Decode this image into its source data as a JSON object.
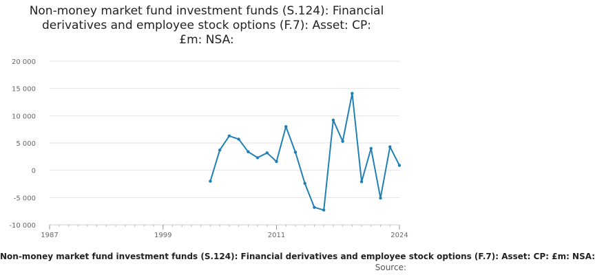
{
  "chart_data": {
    "type": "line",
    "title_lines": [
      "Non-money market fund investment funds (S.124): Financial",
      "derivatives and employee stock options (F.7): Asset: CP:",
      "£m: NSA:"
    ],
    "caption": "Non-money market fund investment funds (S.124): Financial derivatives and employee stock options (F.7): Asset: CP: £m: NSA:",
    "source_label": "Source:",
    "xlabel": "",
    "ylabel": "",
    "xlim": [
      1987,
      2024
    ],
    "ylim": [
      -10000,
      20000
    ],
    "x_ticks": [
      1987,
      1999,
      2011,
      2024
    ],
    "y_ticks": [
      {
        "value": 20000,
        "label": "20 000"
      },
      {
        "value": 15000,
        "label": "15 000"
      },
      {
        "value": 10000,
        "label": "10 000"
      },
      {
        "value": 5000,
        "label": "5 000"
      },
      {
        "value": 0,
        "label": "0"
      },
      {
        "value": -5000,
        "label": "-5 000"
      },
      {
        "value": -10000,
        "label": "-10 000"
      }
    ],
    "grid": true,
    "legend": "none",
    "color": "#1f7fb5",
    "x": [
      2004,
      2005,
      2006,
      2007,
      2008,
      2009,
      2010,
      2011,
      2012,
      2013,
      2014,
      2015,
      2016,
      2017,
      2018,
      2019,
      2020,
      2021,
      2022,
      2023,
      2024
    ],
    "values": [
      -2000,
      3700,
      6300,
      5700,
      3400,
      2300,
      3200,
      1600,
      8000,
      3300,
      -2400,
      -6800,
      -7300,
      9200,
      5300,
      14100,
      -2100,
      4000,
      -5100,
      4300,
      900
    ]
  }
}
